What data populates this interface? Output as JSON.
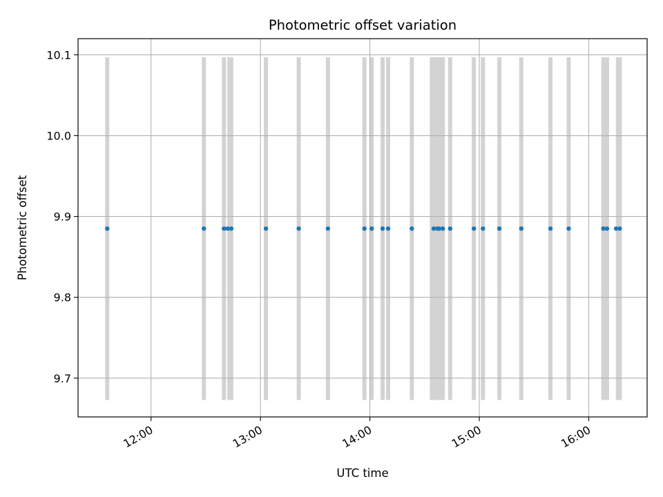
{
  "chart_data": {
    "type": "scatter",
    "title": "Photometric offset variation",
    "xlabel": "UTC time",
    "ylabel": "Photometric offset",
    "x_axis_type": "time",
    "xlim": [
      "11:20",
      "16:32"
    ],
    "ylim": [
      9.652,
      10.12
    ],
    "grid": true,
    "x_ticks": [
      "12:00",
      "13:00",
      "14:00",
      "15:00",
      "16:00"
    ],
    "y_ticks": [
      "9.7",
      "9.8",
      "9.9",
      "10.0",
      "10.1"
    ],
    "band_range": [
      9.673,
      10.097
    ],
    "band_times": [
      "11:36",
      "12:29",
      "12:40",
      "12:43",
      "12:44",
      "13:03",
      "13:21",
      "13:37",
      "13:57",
      "14:01",
      "14:07",
      "14:10",
      "14:23",
      "14:34",
      "14:35",
      "14:36",
      "14:37",
      "14:38",
      "14:39",
      "14:40",
      "14:44",
      "14:57",
      "15:02",
      "15:11",
      "15:23",
      "15:39",
      "15:49",
      "16:08",
      "16:10",
      "16:16",
      "16:17"
    ],
    "points": [
      {
        "x": "11:36",
        "y": 9.885
      },
      {
        "x": "12:29",
        "y": 9.885
      },
      {
        "x": "12:40",
        "y": 9.885
      },
      {
        "x": "12:42",
        "y": 9.885
      },
      {
        "x": "12:44",
        "y": 9.885
      },
      {
        "x": "13:03",
        "y": 9.885
      },
      {
        "x": "13:21",
        "y": 9.885
      },
      {
        "x": "13:37",
        "y": 9.885
      },
      {
        "x": "13:57",
        "y": 9.885
      },
      {
        "x": "14:01",
        "y": 9.885
      },
      {
        "x": "14:07",
        "y": 9.885
      },
      {
        "x": "14:10",
        "y": 9.885
      },
      {
        "x": "14:23",
        "y": 9.885
      },
      {
        "x": "14:35",
        "y": 9.885
      },
      {
        "x": "14:37",
        "y": 9.885
      },
      {
        "x": "14:38",
        "y": 9.885
      },
      {
        "x": "14:40",
        "y": 9.885
      },
      {
        "x": "14:44",
        "y": 9.885
      },
      {
        "x": "14:57",
        "y": 9.885
      },
      {
        "x": "15:02",
        "y": 9.885
      },
      {
        "x": "15:11",
        "y": 9.885
      },
      {
        "x": "15:23",
        "y": 9.885
      },
      {
        "x": "15:39",
        "y": 9.885
      },
      {
        "x": "15:49",
        "y": 9.885
      },
      {
        "x": "16:08",
        "y": 9.885
      },
      {
        "x": "16:10",
        "y": 9.885
      },
      {
        "x": "16:15",
        "y": 9.885
      },
      {
        "x": "16:17",
        "y": 9.885
      }
    ],
    "colors": {
      "points": "#1f77b4",
      "bands": "#d3d3d3",
      "grid": "#b0b0b0",
      "axes": "#000000"
    }
  }
}
